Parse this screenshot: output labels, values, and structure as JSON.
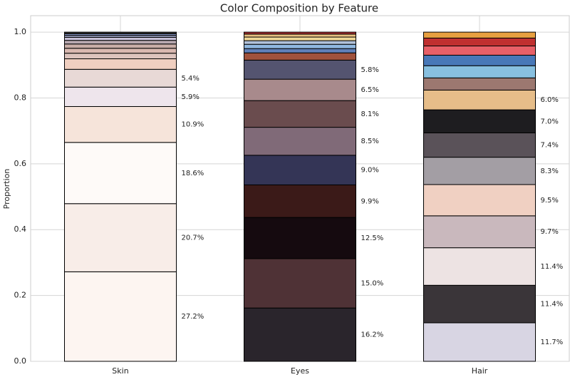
{
  "chart_data": {
    "type": "stacked_bar",
    "title": "Color Composition by Feature",
    "y_label": "Proportion",
    "categories": [
      "Skin",
      "Eyes",
      "Hair"
    ],
    "ylim": [
      0,
      1.05
    ],
    "yticks": [
      {
        "value": 0,
        "label": "0.0"
      },
      0.2,
      0.4,
      0.6,
      0.8,
      {
        "value": 1,
        "label": "1.0"
      }
    ],
    "grid": true,
    "bars": [
      {
        "values": [
          0.272,
          0.207,
          0.186,
          0.109,
          0.059,
          0.054,
          0.032,
          0.017,
          0.015,
          0.013,
          0.011,
          0.009,
          0.006,
          0.005,
          0.005
        ],
        "colors": [
          "#fdf5f1",
          "#f8ede8",
          "#fefaf8",
          "#f6e4da",
          "#eee5ec",
          "#e8d9d6",
          "#f0cfc0",
          "#dcc3bd",
          "#d8b8b0",
          "#c9aea8",
          "#b8a8b0",
          "#c8c0d8",
          "#9aa0c0",
          "#8898c8",
          "#333333"
        ],
        "value_labels": [
          "27.2%",
          "20.7%",
          "18.6%",
          "10.9%",
          "5.9%",
          "5.4%",
          null,
          null,
          null,
          null,
          null,
          null,
          null,
          null,
          null
        ]
      },
      {
        "values": [
          0.162,
          0.15,
          0.125,
          0.099,
          0.09,
          0.085,
          0.081,
          0.065,
          0.058,
          0.022,
          0.013,
          0.013,
          0.011,
          0.011,
          0.009,
          0.006
        ],
        "colors": [
          "#2a252c",
          "#4f3236",
          "#150a0f",
          "#3b1a18",
          "#343556",
          "#806a78",
          "#6a4c4e",
          "#a88a8c",
          "#545470",
          "#a0523c",
          "#6080b8",
          "#90b8e0",
          "#b0c0d8",
          "#f0d898",
          "#e8c080",
          "#b03030"
        ],
        "value_labels": [
          "16.2%",
          "15.0%",
          "12.5%",
          "9.9%",
          "9.0%",
          "8.5%",
          "8.1%",
          "6.5%",
          "5.8%",
          null,
          null,
          null,
          null,
          null,
          null,
          null
        ]
      },
      {
        "values": [
          0.117,
          0.114,
          0.114,
          0.097,
          0.095,
          0.083,
          0.074,
          0.07,
          0.06,
          0.037,
          0.037,
          0.032,
          0.028,
          0.024,
          0.018
        ],
        "colors": [
          "#d8d5e3",
          "#3a3539",
          "#ede3e3",
          "#c9b8bd",
          "#f0d0c2",
          "#a39ea4",
          "#5a5259",
          "#1e1d20",
          "#e6bd89",
          "#9c7870",
          "#88c0e0",
          "#4878b8",
          "#e86068",
          "#c03030",
          "#e8a040"
        ],
        "value_labels": [
          "11.7%",
          "11.4%",
          "11.4%",
          "9.7%",
          "9.5%",
          "8.3%",
          "7.4%",
          "7.0%",
          "6.0%",
          null,
          null,
          null,
          null,
          null,
          null
        ]
      }
    ]
  }
}
